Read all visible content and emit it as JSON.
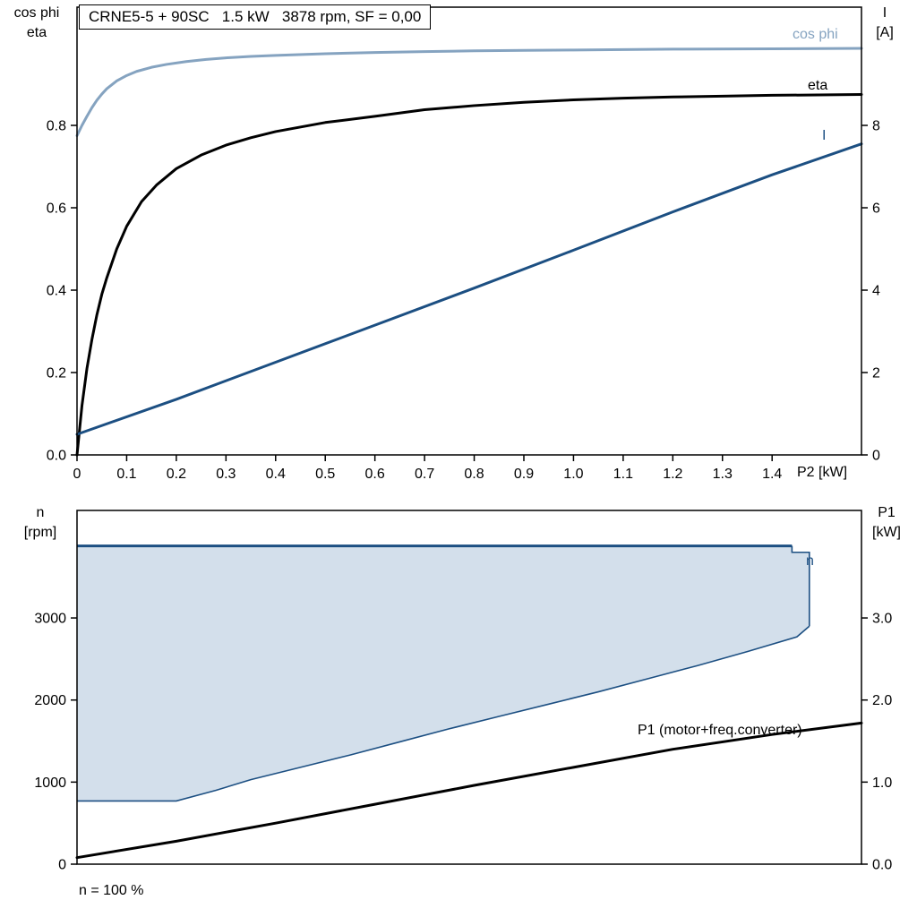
{
  "colors": {
    "dark_blue": "#1c4f82",
    "light_blue": "#85a3c0",
    "black": "#000000",
    "band_fill": "#d3dfeb"
  },
  "top_chart": {
    "title": "CRNE5-5 + 90SC   1.5 kW   3878 rpm, SF = 0,00",
    "left_axis_title_1": "cos phi",
    "left_axis_title_2": "eta",
    "right_axis_title_1": "I",
    "right_axis_title_2": "[A]",
    "x_axis_title": "P2 [kW]",
    "label_cos_phi": "cos phi",
    "label_eta": "eta",
    "label_current": "I"
  },
  "bottom_chart": {
    "left_axis_title_1": "n",
    "left_axis_title_2": "[rpm]",
    "right_axis_title_1": "P1",
    "right_axis_title_2": "[kW]",
    "label_band": "n",
    "label_p1": "P1 (motor+freq.converter)",
    "footnote": "n = 100 %"
  },
  "chart_data": [
    {
      "id": "top",
      "type": "line",
      "title": "CRNE5-5 + 90SC  1.5 kW  3878 rpm, SF = 0,00",
      "xlabel": "P2 [kW]",
      "xlim": [
        0,
        1.58
      ],
      "x_ticks": [
        [
          0,
          "0"
        ],
        [
          0.1,
          "0.1"
        ],
        [
          0.2,
          "0.2"
        ],
        [
          0.3,
          "0.3"
        ],
        [
          0.4,
          "0.4"
        ],
        [
          0.5,
          "0.5"
        ],
        [
          0.6,
          "0.6"
        ],
        [
          0.7,
          "0.7"
        ],
        [
          0.8,
          "0.8"
        ],
        [
          0.9,
          "0.9"
        ],
        [
          1.0,
          "1.0"
        ],
        [
          1.1,
          "1.1"
        ],
        [
          1.2,
          "1.2"
        ],
        [
          1.3,
          "1.3"
        ],
        [
          1.4,
          "1.4"
        ]
      ],
      "left_axis": {
        "title": "cos phi / eta",
        "lim": [
          0,
          1.087
        ],
        "ticks": [
          [
            0,
            "0.0"
          ],
          [
            0.2,
            "0.2"
          ],
          [
            0.4,
            "0.4"
          ],
          [
            0.6,
            "0.6"
          ],
          [
            0.8,
            "0.8"
          ]
        ]
      },
      "right_axis": {
        "title": "I [A]",
        "lim": [
          0,
          10.87
        ],
        "ticks": [
          [
            0,
            "0"
          ],
          [
            2,
            "2"
          ],
          [
            4,
            "4"
          ],
          [
            6,
            "6"
          ],
          [
            8,
            "8"
          ]
        ]
      },
      "series": [
        {
          "key": "cos-phi",
          "name": "cos phi",
          "axis": "left",
          "color": "#85a3c0",
          "width": 3,
          "points": [
            [
              0,
              0.775
            ],
            [
              0.01,
              0.8
            ],
            [
              0.02,
              0.822
            ],
            [
              0.03,
              0.843
            ],
            [
              0.04,
              0.861
            ],
            [
              0.05,
              0.876
            ],
            [
              0.06,
              0.889
            ],
            [
              0.08,
              0.908
            ],
            [
              0.1,
              0.921
            ],
            [
              0.12,
              0.931
            ],
            [
              0.15,
              0.941
            ],
            [
              0.18,
              0.948
            ],
            [
              0.22,
              0.955
            ],
            [
              0.26,
              0.96
            ],
            [
              0.3,
              0.964
            ],
            [
              0.35,
              0.9675
            ],
            [
              0.4,
              0.97
            ],
            [
              0.5,
              0.974
            ],
            [
              0.6,
              0.977
            ],
            [
              0.7,
              0.979
            ],
            [
              0.8,
              0.981
            ],
            [
              0.9,
              0.982
            ],
            [
              1.0,
              0.983
            ],
            [
              1.2,
              0.985
            ],
            [
              1.4,
              0.986
            ],
            [
              1.58,
              0.987
            ]
          ]
        },
        {
          "key": "eta",
          "name": "eta",
          "axis": "left",
          "color": "#000000",
          "width": 3,
          "points": [
            [
              0,
              0
            ],
            [
              0.01,
              0.12
            ],
            [
              0.02,
              0.21
            ],
            [
              0.03,
              0.28
            ],
            [
              0.04,
              0.34
            ],
            [
              0.05,
              0.39
            ],
            [
              0.06,
              0.43
            ],
            [
              0.08,
              0.5
            ],
            [
              0.1,
              0.555
            ],
            [
              0.13,
              0.615
            ],
            [
              0.16,
              0.655
            ],
            [
              0.2,
              0.695
            ],
            [
              0.25,
              0.728
            ],
            [
              0.3,
              0.752
            ],
            [
              0.35,
              0.77
            ],
            [
              0.4,
              0.785
            ],
            [
              0.5,
              0.807
            ],
            [
              0.6,
              0.822
            ],
            [
              0.7,
              0.838
            ],
            [
              0.8,
              0.848
            ],
            [
              0.9,
              0.856
            ],
            [
              1.0,
              0.862
            ],
            [
              1.1,
              0.866
            ],
            [
              1.2,
              0.869
            ],
            [
              1.3,
              0.871
            ],
            [
              1.4,
              0.873
            ],
            [
              1.58,
              0.875
            ]
          ]
        },
        {
          "key": "current",
          "name": "I",
          "axis": "right",
          "color": "#1c4f82",
          "width": 3,
          "points": [
            [
              0,
              0.5
            ],
            [
              0.2,
              1.35
            ],
            [
              0.4,
              2.25
            ],
            [
              0.6,
              3.15
            ],
            [
              0.8,
              4.05
            ],
            [
              1.0,
              4.97
            ],
            [
              1.2,
              5.9
            ],
            [
              1.4,
              6.8
            ],
            [
              1.58,
              7.55
            ]
          ]
        }
      ]
    },
    {
      "id": "bottom",
      "type": "area",
      "xlim": [
        0,
        1.58
      ],
      "left_axis": {
        "title": "n [rpm]",
        "lim": [
          0,
          4310
        ],
        "ticks": [
          [
            0,
            "0"
          ],
          [
            1000,
            "1000"
          ],
          [
            2000,
            "2000"
          ],
          [
            3000,
            "3000"
          ]
        ]
      },
      "right_axis": {
        "title": "P1 [kW]",
        "lim": [
          0,
          4.31
        ],
        "ticks": [
          [
            0,
            "0.0"
          ],
          [
            1,
            "1.0"
          ],
          [
            2,
            "2.0"
          ],
          [
            3,
            "3.0"
          ]
        ]
      },
      "band": {
        "name": "n",
        "fill": "#d3dfeb",
        "stroke": "#1c4f82",
        "n_max_rpm": 3878,
        "n_min_rpm": 770,
        "upper": [
          [
            0,
            3878
          ],
          [
            1.44,
            3878
          ]
        ],
        "edge": [
          [
            1.44,
            3878
          ],
          [
            1.44,
            3800
          ],
          [
            1.475,
            3800
          ],
          [
            1.475,
            2900
          ]
        ],
        "lower": [
          [
            0,
            770
          ],
          [
            0.2,
            770
          ],
          [
            0.28,
            900
          ],
          [
            0.35,
            1030
          ],
          [
            0.45,
            1180
          ],
          [
            0.55,
            1330
          ],
          [
            0.65,
            1490
          ],
          [
            0.75,
            1650
          ],
          [
            0.85,
            1800
          ],
          [
            0.95,
            1950
          ],
          [
            1.05,
            2100
          ],
          [
            1.15,
            2260
          ],
          [
            1.25,
            2420
          ],
          [
            1.35,
            2590
          ],
          [
            1.45,
            2770
          ],
          [
            1.475,
            2900
          ]
        ]
      },
      "series": [
        {
          "key": "p1",
          "name": "P1 (motor+freq.converter)",
          "axis": "right",
          "color": "#000000",
          "width": 3,
          "points": [
            [
              0,
              0.08
            ],
            [
              0.2,
              0.28
            ],
            [
              0.4,
              0.5
            ],
            [
              0.6,
              0.73
            ],
            [
              0.8,
              0.96
            ],
            [
              1.0,
              1.18
            ],
            [
              1.2,
              1.4
            ],
            [
              1.4,
              1.58
            ],
            [
              1.58,
              1.72
            ]
          ]
        }
      ]
    }
  ]
}
